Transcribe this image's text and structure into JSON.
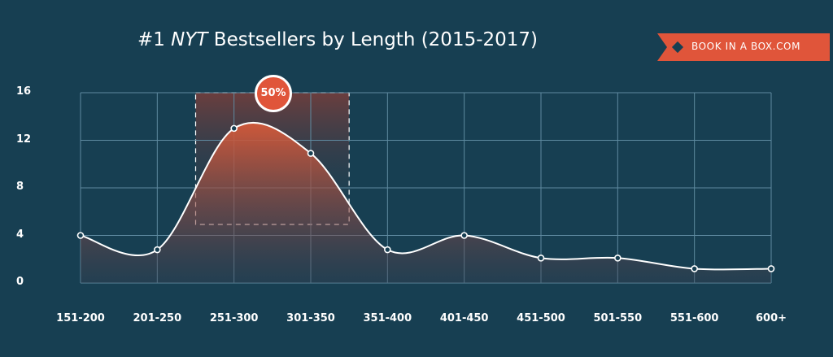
{
  "title": {
    "part1": "#1 ",
    "emphasis": "NYT",
    "part2": " Bestsellers by Length (2015-2017)"
  },
  "brand": {
    "label": "BOOK IN A BOX.COM"
  },
  "callout": {
    "label": "50%"
  },
  "colors": {
    "background": "#173f52",
    "grid": "#5f8aa0",
    "accent": "#e0553a",
    "line": "#ffffff"
  },
  "chart_data": {
    "type": "area",
    "categories": [
      "151-200",
      "201-250",
      "251-300",
      "301-350",
      "351-400",
      "401-450",
      "451-500",
      "501-550",
      "551-600",
      "600+"
    ],
    "values": [
      4,
      2.8,
      13,
      10.9,
      2.8,
      4,
      2.1,
      2.1,
      1.2,
      1.2
    ],
    "y_ticks": [
      0,
      4,
      8,
      12,
      16
    ],
    "ylim": [
      0,
      16
    ],
    "grid": true,
    "highlight": {
      "categories": [
        "251-300",
        "301-350"
      ],
      "label": "50%"
    }
  }
}
